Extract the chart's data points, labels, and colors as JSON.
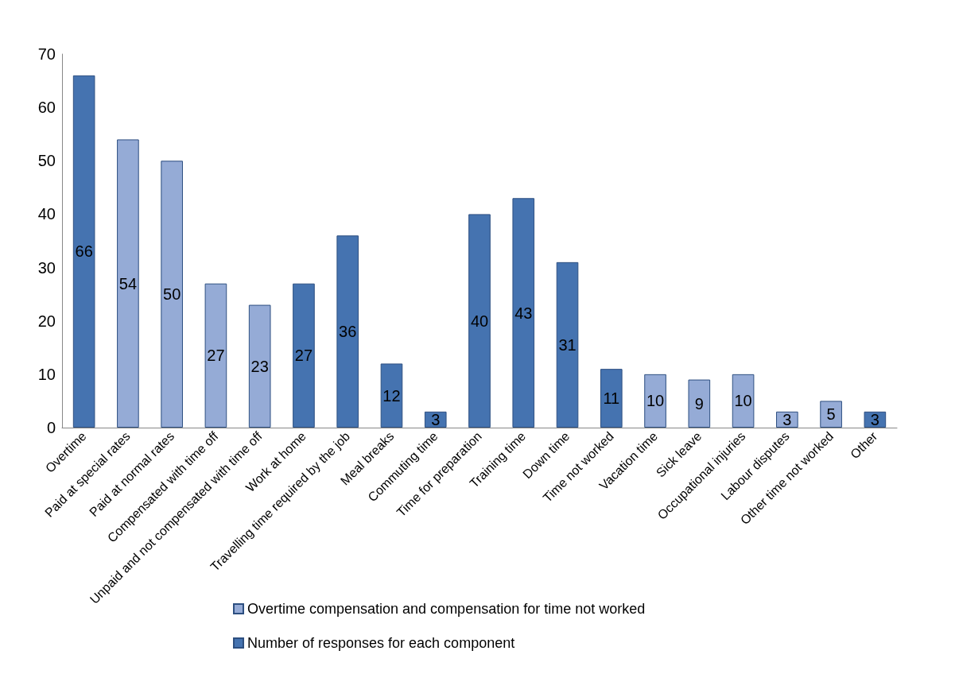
{
  "chart_data": {
    "type": "bar",
    "stacked": true,
    "categories": [
      "Overtime",
      "Paid at special rates",
      "Paid at normal rates",
      "Compensated with time off",
      "Unpaid and not compensated with time off",
      "Work at home",
      "Travelling time required by the job",
      "Meal breaks",
      "Commuting time",
      "Time for preparation",
      "Training time",
      "Down time",
      "Time not worked",
      "Vacation time",
      "Sick leave",
      "Occupational injuries",
      "Labour disputes",
      "Other time not worked",
      "Other"
    ],
    "series": [
      {
        "name": "Overtime compensation and compensation for time not worked",
        "color": "#95abd6",
        "values": [
          null,
          54,
          50,
          27,
          23,
          null,
          null,
          null,
          null,
          null,
          null,
          null,
          null,
          10,
          9,
          10,
          3,
          5,
          null
        ]
      },
      {
        "name": "Number of responses for each component",
        "color": "#4573b0",
        "values": [
          66,
          null,
          null,
          null,
          null,
          27,
          36,
          12,
          3,
          40,
          43,
          31,
          11,
          null,
          null,
          null,
          null,
          null,
          3
        ]
      }
    ],
    "ylim": [
      0,
      70
    ],
    "yticks": [
      0,
      10,
      20,
      30,
      40,
      50,
      60,
      70
    ],
    "grid": false,
    "legend": "bottom",
    "data_labels": true
  }
}
